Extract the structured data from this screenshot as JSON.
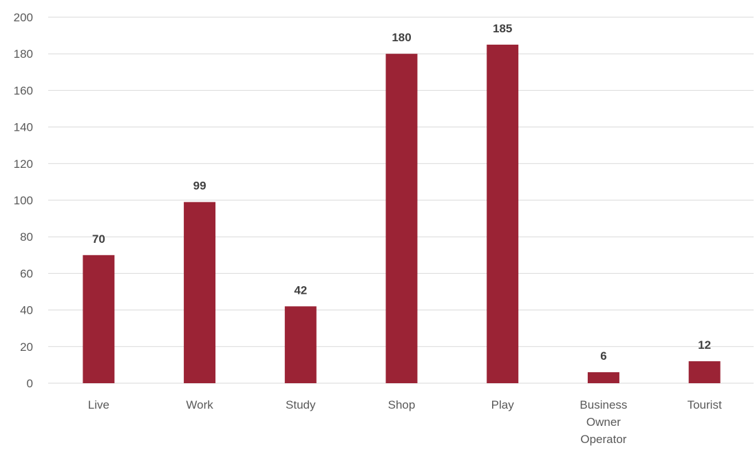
{
  "chart_data": {
    "type": "bar",
    "categories": [
      [
        "Live"
      ],
      [
        "Work"
      ],
      [
        "Study"
      ],
      [
        "Shop"
      ],
      [
        "Play"
      ],
      [
        "Business",
        "Owner",
        "Operator"
      ],
      [
        "Tourist"
      ]
    ],
    "values": [
      70,
      99,
      42,
      180,
      185,
      6,
      12
    ],
    "ylim": [
      0,
      200
    ],
    "yticks": [
      0,
      20,
      40,
      60,
      80,
      100,
      120,
      140,
      160,
      180,
      200
    ],
    "grid": true,
    "legend": "none",
    "bar_color": "#9b2335",
    "title": "",
    "xlabel": "",
    "ylabel": ""
  }
}
